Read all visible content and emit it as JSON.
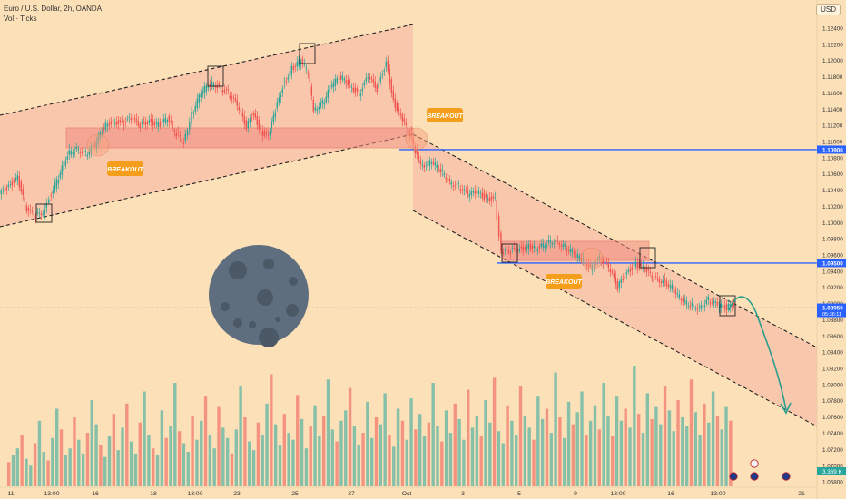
{
  "header": {
    "symbol_line": "Euro / U.S. Dollar, 2h, OANDA",
    "indicator_line": "Vol · Ticks",
    "currency": "USD"
  },
  "colors": {
    "background": "#fbe0b8",
    "channel_fill": "#f7b3a0",
    "zone_fill": "#f28b82",
    "up_candle": "#26a69a",
    "down_candle": "#ef5350",
    "level_line": "#2962ff",
    "badge": "#f59e1b",
    "moon": "#5f6e7e",
    "projection": "#2a9d8f"
  },
  "annotations": {
    "breakout_labels": [
      "BREAKOUT",
      "BREAKOUT",
      "BREAKOUT"
    ],
    "moon_icon": "moon-icon"
  },
  "chart_data": {
    "type": "candlestick",
    "symbol": "Euro / U.S. Dollar",
    "timeframe": "2h",
    "source": "OANDA",
    "y_axis": {
      "ticks": [
        "1.12400",
        "1.12200",
        "1.12000",
        "1.11800",
        "1.11600",
        "1.11400",
        "1.11200",
        "1.11000",
        "1.10800",
        "1.10600",
        "1.10400",
        "1.10200",
        "1.10000",
        "1.09800",
        "1.09600",
        "1.09400",
        "1.09200",
        "1.09000",
        "1.08800",
        "1.08600",
        "1.08400",
        "1.08200",
        "1.08000",
        "1.07800",
        "1.07600",
        "1.07400",
        "1.07200",
        "1.07000",
        "1.06800"
      ],
      "range": [
        1.0675,
        1.1252
      ]
    },
    "x_axis": {
      "ticks": [
        "11",
        "13:00",
        "16",
        "18",
        "13:00",
        "23",
        "25",
        "27",
        "Oct",
        "3",
        "5",
        "9",
        "13:00",
        "16",
        "13:00",
        "21"
      ]
    },
    "price_tags": [
      {
        "label": "1.10900",
        "value": 1.109
      },
      {
        "label": "1.09500",
        "value": 1.095
      },
      {
        "label": "1.08950",
        "value": 1.0895,
        "sub": "05:36:11"
      }
    ],
    "volume_tag": "3.369 K",
    "levels": [
      1.109,
      1.095
    ],
    "price_path": [
      [
        0,
        1.1035
      ],
      [
        10,
        1.1045
      ],
      [
        20,
        1.1055
      ],
      [
        30,
        1.1015
      ],
      [
        40,
        1.1008
      ],
      [
        50,
        1.1015
      ],
      [
        55,
        1.1032
      ],
      [
        65,
        1.1055
      ],
      [
        75,
        1.1085
      ],
      [
        85,
        1.1092
      ],
      [
        95,
        1.1085
      ],
      [
        105,
        1.1095
      ],
      [
        115,
        1.1118
      ],
      [
        125,
        1.1125
      ],
      [
        135,
        1.1122
      ],
      [
        145,
        1.1128
      ],
      [
        155,
        1.112
      ],
      [
        165,
        1.1125
      ],
      [
        175,
        1.112
      ],
      [
        185,
        1.1128
      ],
      [
        195,
        1.111
      ],
      [
        203,
        1.11
      ],
      [
        212,
        1.1135
      ],
      [
        222,
        1.116
      ],
      [
        232,
        1.1172
      ],
      [
        242,
        1.1168
      ],
      [
        252,
        1.116
      ],
      [
        262,
        1.1145
      ],
      [
        272,
        1.1118
      ],
      [
        280,
        1.1135
      ],
      [
        288,
        1.1112
      ],
      [
        296,
        1.1105
      ],
      [
        304,
        1.1138
      ],
      [
        312,
        1.1168
      ],
      [
        322,
        1.119
      ],
      [
        332,
        1.12
      ],
      [
        340,
        1.1185
      ],
      [
        346,
        1.114
      ],
      [
        356,
        1.1148
      ],
      [
        366,
        1.117
      ],
      [
        376,
        1.118
      ],
      [
        386,
        1.117
      ],
      [
        396,
        1.1158
      ],
      [
        406,
        1.118
      ],
      [
        416,
        1.1165
      ],
      [
        426,
        1.1198
      ],
      [
        434,
        1.115
      ],
      [
        442,
        1.113
      ],
      [
        452,
        1.111
      ],
      [
        458,
        1.1088
      ],
      [
        466,
        1.107
      ],
      [
        476,
        1.1075
      ],
      [
        486,
        1.1065
      ],
      [
        496,
        1.105
      ],
      [
        506,
        1.1045
      ],
      [
        516,
        1.1035
      ],
      [
        526,
        1.1038
      ],
      [
        536,
        1.103
      ],
      [
        546,
        1.1028
      ],
      [
        553,
        1.0962
      ],
      [
        563,
        1.0965
      ],
      [
        573,
        1.0967
      ],
      [
        583,
        1.097
      ],
      [
        593,
        1.0968
      ],
      [
        603,
        1.0975
      ],
      [
        613,
        1.0978
      ],
      [
        623,
        1.097
      ],
      [
        633,
        1.0962
      ],
      [
        641,
        1.0955
      ],
      [
        651,
        1.0945
      ],
      [
        661,
        1.0955
      ],
      [
        671,
        1.0945
      ],
      [
        681,
        1.092
      ],
      [
        691,
        1.0938
      ],
      [
        701,
        1.0948
      ],
      [
        711,
        1.0942
      ],
      [
        721,
        1.093
      ],
      [
        731,
        1.0928
      ],
      [
        741,
        1.092
      ],
      [
        751,
        1.0905
      ],
      [
        761,
        1.0898
      ],
      [
        771,
        1.0895
      ],
      [
        781,
        1.0905
      ],
      [
        791,
        1.0898
      ],
      [
        801,
        1.0895
      ],
      [
        809,
        1.09
      ]
    ],
    "volume": [
      14,
      18,
      22,
      30,
      16,
      12,
      25,
      38,
      20,
      15,
      28,
      45,
      33,
      18,
      22,
      40,
      27,
      19,
      31,
      50,
      36,
      24,
      17,
      29,
      42,
      21,
      34,
      48,
      26,
      19,
      37,
      55,
      30,
      22,
      18,
      44,
      28,
      35,
      60,
      32,
      25,
      20,
      41,
      27,
      38,
      52,
      30,
      22,
      46,
      34,
      28,
      19,
      33,
      58,
      40,
      26,
      21,
      37,
      30,
      48,
      65,
      36,
      24,
      42,
      31,
      27,
      53,
      39,
      22,
      35,
      47,
      29,
      41,
      62,
      33,
      26,
      38,
      44,
      57,
      35,
      24,
      31,
      49,
      28,
      40,
      36,
      54,
      30,
      23,
      45,
      38,
      27,
      51,
      33,
      42,
      29,
      37,
      60,
      35,
      26,
      44,
      31,
      48,
      39,
      27,
      56,
      34,
      41,
      29,
      50,
      37,
      63,
      32,
      25,
      47,
      38,
      30,
      58,
      41,
      34,
      27,
      52,
      39,
      45,
      31,
      66,
      40,
      28,
      49,
      36,
      43,
      55,
      30,
      38,
      47,
      33,
      60,
      41,
      29,
      52,
      38,
      45,
      34,
      70,
      42,
      31,
      54,
      39,
      46,
      36,
      58,
      44,
      32,
      50,
      40,
      35,
      62,
      43,
      30,
      48,
      37,
      55,
      41,
      33,
      46,
      38
    ]
  }
}
